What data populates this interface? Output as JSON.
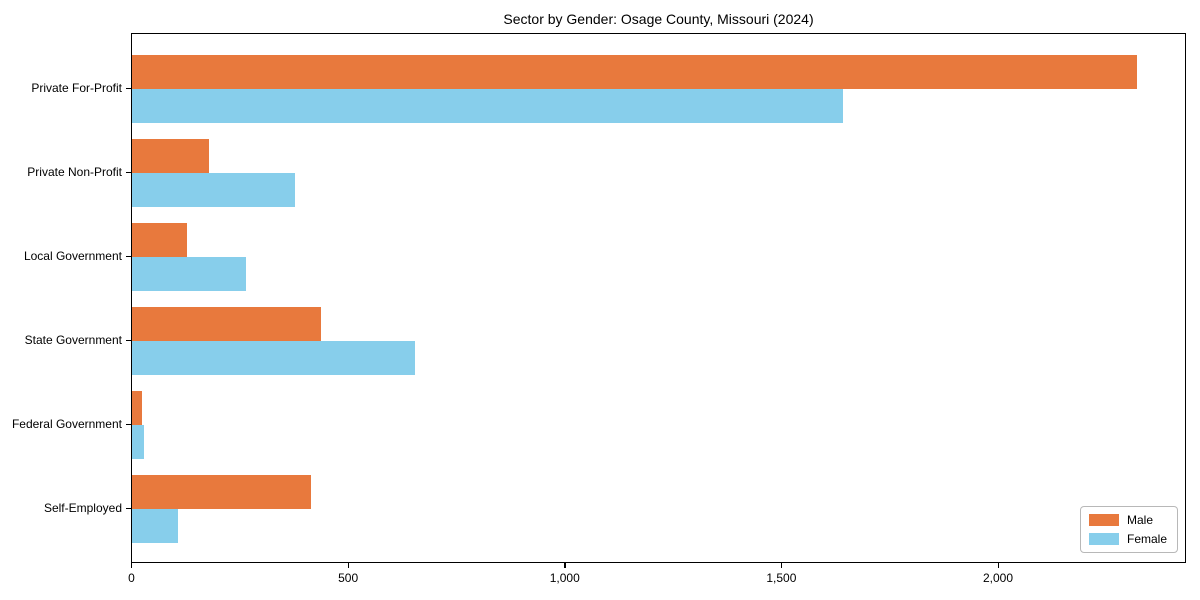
{
  "chart_data": {
    "type": "bar",
    "orientation": "horizontal",
    "title": "Sector by Gender: Osage County, Missouri (2024)",
    "categories": [
      "Private For-Profit",
      "Private Non-Profit",
      "Local Government",
      "State Government",
      "Federal Government",
      "Self-Employed"
    ],
    "series": [
      {
        "name": "Male",
        "color": "#E8793D",
        "values": [
          2320,
          178,
          127,
          437,
          23,
          412
        ]
      },
      {
        "name": "Female",
        "color": "#87CEEB",
        "values": [
          1642,
          377,
          264,
          654,
          28,
          106
        ]
      }
    ],
    "xlabel": "",
    "ylabel": "",
    "xlim": [
      0,
      2435
    ],
    "x_ticks": [
      0,
      500,
      1000,
      1500,
      2000
    ],
    "x_tick_labels": [
      "0",
      "500",
      "1,000",
      "1,500",
      "2,000"
    ],
    "grid": false,
    "legend": {
      "position": "lower right",
      "entries": [
        "Male",
        "Female"
      ]
    },
    "colors": {
      "male": "#E8793D",
      "female": "#87CEEB",
      "spine": "#000000",
      "background": "#ffffff"
    }
  }
}
